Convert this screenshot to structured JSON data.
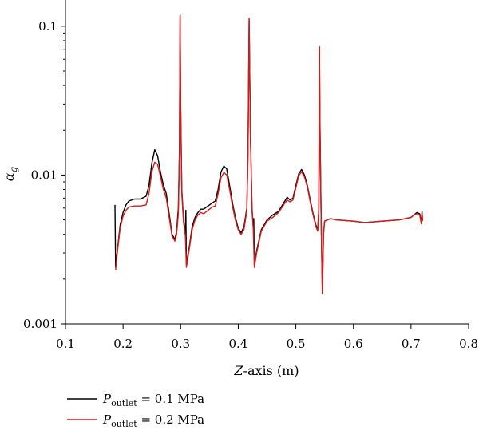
{
  "chart_data": {
    "type": "line",
    "title": "",
    "xlabel": {
      "italic": "Z",
      "rest": "-axis (m)"
    },
    "ylabel": {
      "base": "α",
      "sub": "g"
    },
    "xlim": [
      0.1,
      0.8
    ],
    "ylim": [
      0.001,
      0.15
    ],
    "yscale": "log",
    "grid": false,
    "legend_position": "bottom-left",
    "x_ticks": [
      0.1,
      0.2,
      0.3,
      0.4,
      0.5,
      0.6,
      0.7,
      0.8
    ],
    "x_tick_labels": [
      "0.1",
      "0.2",
      "0.3",
      "0.4",
      "0.5",
      "0.6",
      "0.7",
      "0.8"
    ],
    "y_ticks": [
      0.001,
      0.01,
      0.1
    ],
    "y_tick_labels": [
      "0.001",
      "0.01",
      "0.1"
    ],
    "series": [
      {
        "name": {
          "base": "P",
          "sub": "outlet",
          "rest": " = 0.1 MPa"
        },
        "color": "#000000",
        "points": [
          [
            0.186,
            0.0063
          ],
          [
            0.187,
            0.0024
          ],
          [
            0.19,
            0.0031
          ],
          [
            0.195,
            0.0046
          ],
          [
            0.2,
            0.0056
          ],
          [
            0.205,
            0.0063
          ],
          [
            0.21,
            0.0067
          ],
          [
            0.22,
            0.0069
          ],
          [
            0.23,
            0.0069
          ],
          [
            0.24,
            0.0072
          ],
          [
            0.245,
            0.0085
          ],
          [
            0.25,
            0.012
          ],
          [
            0.255,
            0.0148
          ],
          [
            0.26,
            0.0135
          ],
          [
            0.265,
            0.0105
          ],
          [
            0.27,
            0.0086
          ],
          [
            0.275,
            0.0075
          ],
          [
            0.28,
            0.0055
          ],
          [
            0.285,
            0.004
          ],
          [
            0.29,
            0.0037
          ],
          [
            0.293,
            0.0042
          ],
          [
            0.296,
            0.006
          ],
          [
            0.298,
            0.015
          ],
          [
            0.299,
            0.119
          ],
          [
            0.3,
            0.03
          ],
          [
            0.302,
            0.008
          ],
          [
            0.305,
            0.005
          ],
          [
            0.308,
            0.004
          ],
          [
            0.309,
            0.0058
          ],
          [
            0.31,
            0.0025
          ],
          [
            0.315,
            0.0033
          ],
          [
            0.32,
            0.0045
          ],
          [
            0.325,
            0.0052
          ],
          [
            0.33,
            0.0056
          ],
          [
            0.335,
            0.0059
          ],
          [
            0.34,
            0.0059
          ],
          [
            0.345,
            0.0061
          ],
          [
            0.35,
            0.0063
          ],
          [
            0.355,
            0.0065
          ],
          [
            0.36,
            0.0067
          ],
          [
            0.365,
            0.008
          ],
          [
            0.37,
            0.0105
          ],
          [
            0.375,
            0.0115
          ],
          [
            0.38,
            0.011
          ],
          [
            0.385,
            0.0085
          ],
          [
            0.39,
            0.0065
          ],
          [
            0.395,
            0.0052
          ],
          [
            0.4,
            0.0044
          ],
          [
            0.405,
            0.0041
          ],
          [
            0.41,
            0.0045
          ],
          [
            0.415,
            0.006
          ],
          [
            0.417,
            0.015
          ],
          [
            0.419,
            0.11
          ],
          [
            0.421,
            0.02
          ],
          [
            0.424,
            0.006
          ],
          [
            0.426,
            0.0045
          ],
          [
            0.427,
            0.0051
          ],
          [
            0.428,
            0.0025
          ],
          [
            0.432,
            0.0031
          ],
          [
            0.44,
            0.0043
          ],
          [
            0.45,
            0.005
          ],
          [
            0.46,
            0.0054
          ],
          [
            0.47,
            0.0057
          ],
          [
            0.48,
            0.0066
          ],
          [
            0.485,
            0.0071
          ],
          [
            0.49,
            0.0068
          ],
          [
            0.495,
            0.007
          ],
          [
            0.5,
            0.0085
          ],
          [
            0.505,
            0.0102
          ],
          [
            0.51,
            0.0109
          ],
          [
            0.515,
            0.01
          ],
          [
            0.52,
            0.0085
          ],
          [
            0.525,
            0.0068
          ],
          [
            0.53,
            0.0055
          ],
          [
            0.535,
            0.0046
          ],
          [
            0.538,
            0.0043
          ],
          [
            0.54,
            0.006
          ],
          [
            0.541,
            0.072
          ],
          [
            0.542,
            0.02
          ],
          [
            0.544,
            0.005
          ],
          [
            0.546,
            0.0016
          ],
          [
            0.548,
            0.004
          ],
          [
            0.55,
            0.0049
          ],
          [
            0.56,
            0.0051
          ],
          [
            0.57,
            0.005
          ],
          [
            0.6,
            0.0049
          ],
          [
            0.62,
            0.0048
          ],
          [
            0.65,
            0.0049
          ],
          [
            0.68,
            0.005
          ],
          [
            0.7,
            0.0052
          ],
          [
            0.705,
            0.0054
          ],
          [
            0.71,
            0.0056
          ],
          [
            0.715,
            0.0055
          ],
          [
            0.718,
            0.0048
          ],
          [
            0.719,
            0.0057
          ],
          [
            0.72,
            0.005
          ]
        ]
      },
      {
        "name": {
          "base": "P",
          "sub": "outlet",
          "rest": " = 0.2 MPa"
        },
        "color": "#d7191c",
        "points": [
          [
            0.187,
            0.0023
          ],
          [
            0.19,
            0.003
          ],
          [
            0.195,
            0.0044
          ],
          [
            0.2,
            0.0053
          ],
          [
            0.205,
            0.0058
          ],
          [
            0.21,
            0.0061
          ],
          [
            0.22,
            0.0062
          ],
          [
            0.23,
            0.0062
          ],
          [
            0.24,
            0.0063
          ],
          [
            0.245,
            0.0075
          ],
          [
            0.25,
            0.0105
          ],
          [
            0.255,
            0.0122
          ],
          [
            0.26,
            0.0118
          ],
          [
            0.265,
            0.0098
          ],
          [
            0.27,
            0.008
          ],
          [
            0.275,
            0.007
          ],
          [
            0.28,
            0.0052
          ],
          [
            0.285,
            0.0039
          ],
          [
            0.29,
            0.0036
          ],
          [
            0.293,
            0.004
          ],
          [
            0.296,
            0.0055
          ],
          [
            0.298,
            0.014
          ],
          [
            0.299,
            0.117
          ],
          [
            0.3,
            0.028
          ],
          [
            0.302,
            0.0075
          ],
          [
            0.305,
            0.0048
          ],
          [
            0.308,
            0.004
          ],
          [
            0.31,
            0.0024
          ],
          [
            0.315,
            0.0032
          ],
          [
            0.32,
            0.0043
          ],
          [
            0.325,
            0.005
          ],
          [
            0.33,
            0.0054
          ],
          [
            0.335,
            0.0056
          ],
          [
            0.34,
            0.0055
          ],
          [
            0.345,
            0.0057
          ],
          [
            0.35,
            0.0059
          ],
          [
            0.355,
            0.0061
          ],
          [
            0.36,
            0.0062
          ],
          [
            0.365,
            0.0075
          ],
          [
            0.37,
            0.0096
          ],
          [
            0.375,
            0.0104
          ],
          [
            0.38,
            0.01
          ],
          [
            0.385,
            0.008
          ],
          [
            0.39,
            0.0062
          ],
          [
            0.395,
            0.005
          ],
          [
            0.4,
            0.0043
          ],
          [
            0.405,
            0.004
          ],
          [
            0.41,
            0.0043
          ],
          [
            0.415,
            0.0058
          ],
          [
            0.417,
            0.014
          ],
          [
            0.419,
            0.113
          ],
          [
            0.421,
            0.019
          ],
          [
            0.424,
            0.0058
          ],
          [
            0.426,
            0.0044
          ],
          [
            0.428,
            0.0024
          ],
          [
            0.432,
            0.003
          ],
          [
            0.44,
            0.0042
          ],
          [
            0.45,
            0.0049
          ],
          [
            0.46,
            0.0052
          ],
          [
            0.47,
            0.0056
          ],
          [
            0.48,
            0.0064
          ],
          [
            0.485,
            0.0068
          ],
          [
            0.49,
            0.0066
          ],
          [
            0.495,
            0.0068
          ],
          [
            0.5,
            0.0082
          ],
          [
            0.505,
            0.0099
          ],
          [
            0.51,
            0.0105
          ],
          [
            0.515,
            0.0097
          ],
          [
            0.52,
            0.0083
          ],
          [
            0.525,
            0.0066
          ],
          [
            0.53,
            0.0054
          ],
          [
            0.535,
            0.0045
          ],
          [
            0.538,
            0.0042
          ],
          [
            0.54,
            0.0058
          ],
          [
            0.541,
            0.073
          ],
          [
            0.542,
            0.019
          ],
          [
            0.544,
            0.0048
          ],
          [
            0.546,
            0.0016
          ],
          [
            0.548,
            0.004
          ],
          [
            0.55,
            0.0049
          ],
          [
            0.56,
            0.0051
          ],
          [
            0.57,
            0.005
          ],
          [
            0.6,
            0.0049
          ],
          [
            0.62,
            0.0048
          ],
          [
            0.65,
            0.0049
          ],
          [
            0.68,
            0.005
          ],
          [
            0.7,
            0.0052
          ],
          [
            0.705,
            0.0054
          ],
          [
            0.71,
            0.0055
          ],
          [
            0.715,
            0.0054
          ],
          [
            0.718,
            0.0047
          ],
          [
            0.719,
            0.0055
          ],
          [
            0.72,
            0.0049
          ]
        ]
      }
    ]
  }
}
